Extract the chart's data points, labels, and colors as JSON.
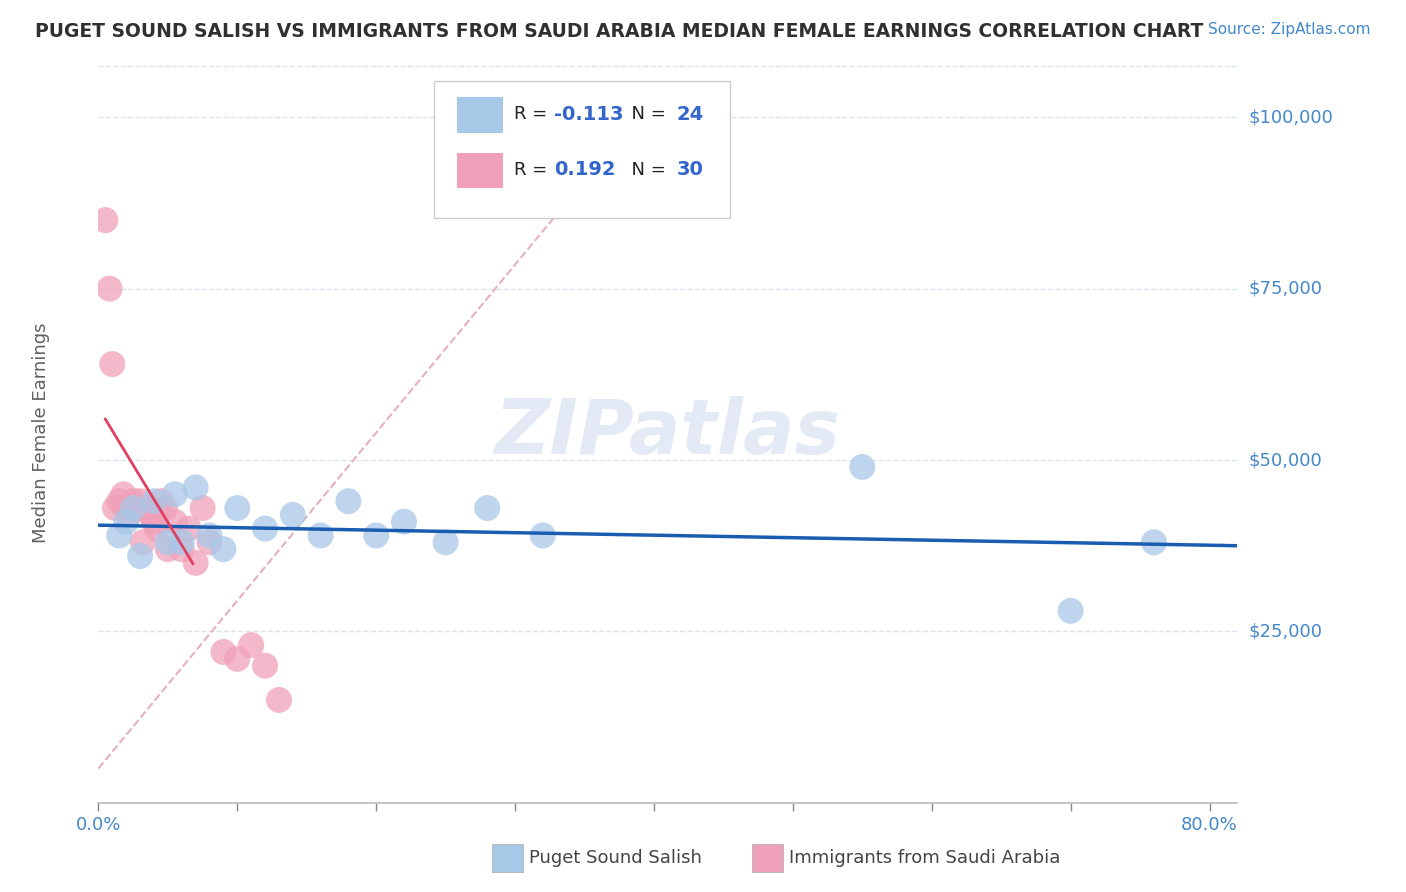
{
  "title": "PUGET SOUND SALISH VS IMMIGRANTS FROM SAUDI ARABIA MEDIAN FEMALE EARNINGS CORRELATION CHART",
  "source": "Source: ZipAtlas.com",
  "ylabel": "Median Female Earnings",
  "ytick_labels": [
    "$25,000",
    "$50,000",
    "$75,000",
    "$100,000"
  ],
  "ytick_values": [
    25000,
    50000,
    75000,
    100000
  ],
  "ymin": 0,
  "ymax": 108000,
  "xmin": 0.0,
  "xmax": 0.82,
  "r_blue": -0.113,
  "n_blue": 24,
  "r_pink": 0.192,
  "n_pink": 30,
  "blue_scatter_x": [
    0.015,
    0.02,
    0.025,
    0.03,
    0.04,
    0.05,
    0.055,
    0.06,
    0.07,
    0.08,
    0.09,
    0.1,
    0.12,
    0.14,
    0.16,
    0.18,
    0.2,
    0.22,
    0.25,
    0.28,
    0.32,
    0.55,
    0.7,
    0.76
  ],
  "blue_scatter_y": [
    39000,
    41000,
    43000,
    36000,
    44000,
    38000,
    45000,
    38000,
    46000,
    39000,
    37000,
    43000,
    40000,
    42000,
    39000,
    44000,
    39000,
    41000,
    38000,
    43000,
    39000,
    49000,
    28000,
    38000
  ],
  "pink_scatter_x": [
    0.005,
    0.008,
    0.01,
    0.012,
    0.015,
    0.018,
    0.02,
    0.022,
    0.025,
    0.028,
    0.03,
    0.032,
    0.035,
    0.038,
    0.04,
    0.042,
    0.045,
    0.048,
    0.05,
    0.055,
    0.06,
    0.065,
    0.07,
    0.075,
    0.08,
    0.09,
    0.1,
    0.11,
    0.12,
    0.13
  ],
  "pink_scatter_y": [
    85000,
    75000,
    64000,
    43000,
    44000,
    45000,
    43000,
    42000,
    44000,
    43000,
    44000,
    38000,
    43000,
    42000,
    41000,
    40000,
    44000,
    43000,
    37000,
    41000,
    37000,
    40000,
    35000,
    43000,
    38000,
    22000,
    21000,
    23000,
    20000,
    15000
  ],
  "blue_color": "#a8c8e8",
  "pink_color": "#f0a0b8",
  "blue_line_color": "#1a5cb0",
  "pink_line_color": "#e04060",
  "diagonal_color": "#e8b0b8",
  "watermark": "ZIPatlas",
  "background_color": "#ffffff",
  "grid_color": "#d8e4f0",
  "title_color": "#303030",
  "source_color": "#4488cc",
  "legend_r_color": "#3366cc",
  "axis_label_color": "#606060",
  "tick_color": "#888888"
}
